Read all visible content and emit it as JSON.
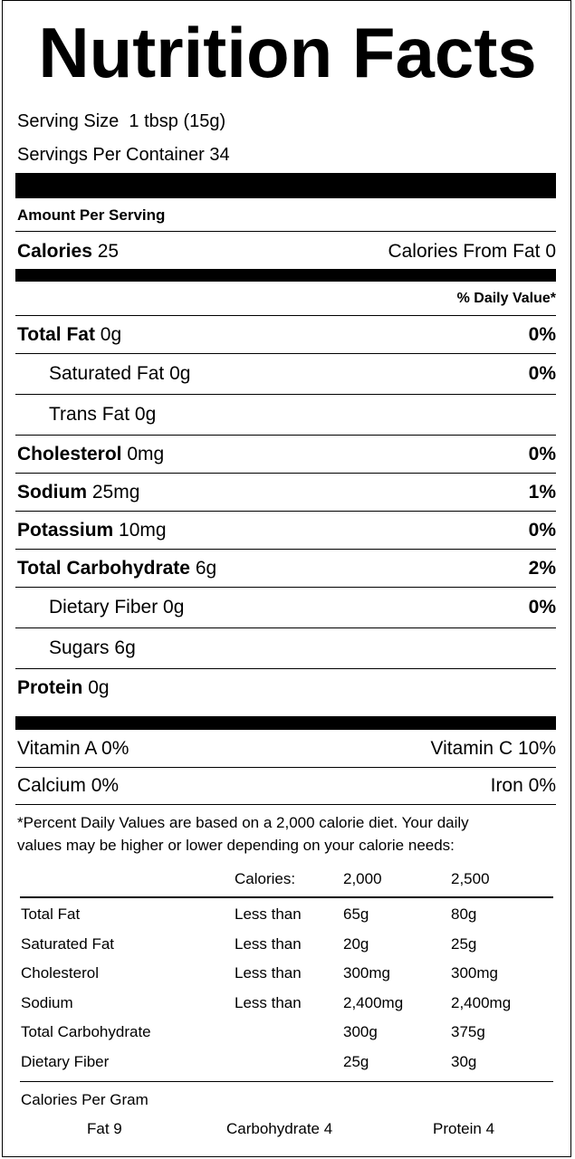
{
  "title": "Nutrition Facts",
  "serving_size": {
    "label": "Serving Size",
    "value": "1 tbsp (15g)"
  },
  "servings_per_container": {
    "label": "Servings Per Container",
    "value": "34"
  },
  "amount_per_serving": "Amount Per Serving",
  "calories": {
    "label": "Calories",
    "value": "25"
  },
  "calories_from_fat": {
    "label": "Calories From Fat",
    "value": "0"
  },
  "daily_value_header": "% Daily Value*",
  "nutrients": [
    {
      "label": "Total Fat",
      "amount": "0g",
      "dv": "0%",
      "bold": true,
      "indent": false
    },
    {
      "label": "Saturated Fat",
      "amount": "0g",
      "dv": "0%",
      "bold": false,
      "indent": true
    },
    {
      "label": "Trans Fat",
      "amount": "0g",
      "bold": false,
      "indent": true
    },
    {
      "label": "Cholesterol",
      "amount": "0mg",
      "dv": "0%",
      "bold": true,
      "indent": false
    },
    {
      "label": "Sodium",
      "amount": "25mg",
      "dv": "1%",
      "bold": true,
      "indent": false
    },
    {
      "label": "Potassium",
      "amount": "10mg",
      "dv": "0%",
      "bold": true,
      "indent": false
    },
    {
      "label": "Total Carbohydrate",
      "amount": "6g",
      "dv": "2%",
      "bold": true,
      "indent": false
    },
    {
      "label": "Dietary Fiber",
      "amount": "0g",
      "dv": "0%",
      "bold": false,
      "indent": true
    },
    {
      "label": "Sugars",
      "amount": "6g",
      "bold": false,
      "indent": true
    },
    {
      "label": "Protein",
      "amount": "0g",
      "bold": true,
      "indent": false
    }
  ],
  "vitamins": [
    [
      {
        "label": "Vitamin A",
        "value": "0%"
      },
      {
        "label": "Vitamin C",
        "value": "10%"
      }
    ],
    [
      {
        "label": "Calcium",
        "value": "0%"
      },
      {
        "label": "Iron",
        "value": "0%"
      }
    ]
  ],
  "footnote": [
    "*Percent Daily Values are based on a 2,000 calorie diet. Your daily",
    "values may be higher or lower depending on your calorie needs:"
  ],
  "dv_table": {
    "header": {
      "label": "Calories:",
      "values": [
        "2,000",
        "2,500"
      ]
    },
    "rows": [
      {
        "name": "Total Fat",
        "qualifier": "Less than",
        "values": [
          "65g",
          "80g"
        ]
      },
      {
        "name": "Saturated Fat",
        "qualifier": "Less than",
        "values": [
          "20g",
          "25g"
        ]
      },
      {
        "name": "Cholesterol",
        "qualifier": "Less than",
        "values": [
          "300mg",
          "300mg"
        ]
      },
      {
        "name": "Sodium",
        "qualifier": "Less than",
        "values": [
          "2,400mg",
          "2,400mg"
        ]
      },
      {
        "name": "Total Carbohydrate",
        "values": [
          "300g",
          "375g"
        ]
      },
      {
        "name": "Dietary Fiber",
        "values": [
          "25g",
          "30g"
        ]
      }
    ]
  },
  "calories_per_gram": {
    "title": "Calories Per Gram",
    "items": [
      "Fat 9",
      "Carbohydrate 4",
      "Protein 4"
    ]
  }
}
